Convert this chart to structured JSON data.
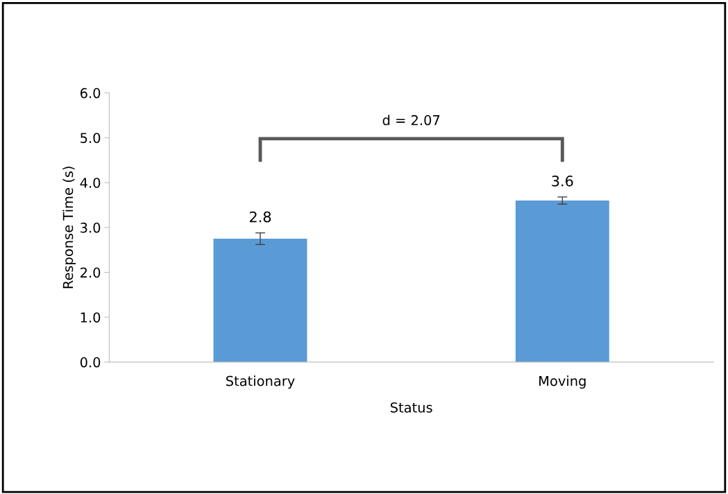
{
  "chart_data": {
    "type": "bar",
    "xlabel": "Status",
    "ylabel": "Response Time (s)",
    "categories": [
      "Stationary",
      "Moving"
    ],
    "values": [
      2.75,
      3.6
    ],
    "color": "#5b9bd5",
    "errors": [
      0.13,
      0.08
    ],
    "value_labels": [
      "2.8",
      "3.6"
    ],
    "ylim": [
      0,
      6
    ],
    "yticks": [
      {
        "value": 0,
        "label": "0.0"
      },
      {
        "value": 1,
        "label": "1.0"
      },
      {
        "value": 2,
        "label": "2.0"
      },
      {
        "value": 3,
        "label": "3.0"
      },
      {
        "value": 4,
        "label": "4.0"
      },
      {
        "value": 5,
        "label": "5.0"
      },
      {
        "value": 6,
        "label": "6.0"
      }
    ],
    "annotations": [
      "d = 2.07"
    ],
    "grid": false,
    "legend": false
  }
}
